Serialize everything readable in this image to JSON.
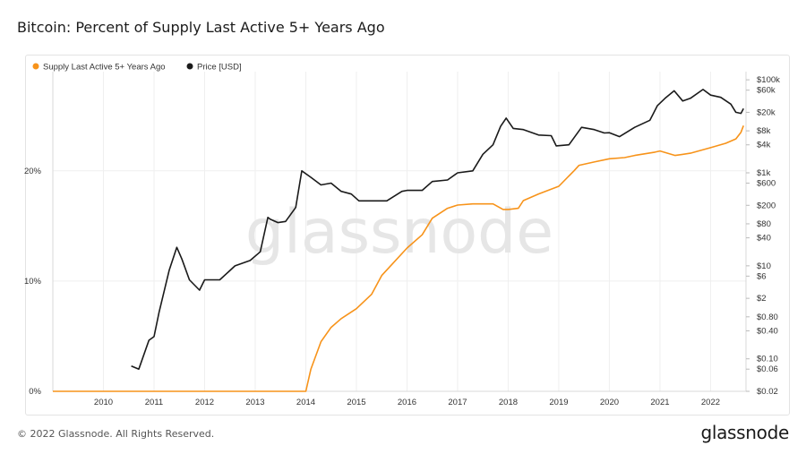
{
  "page": {
    "title": "Bitcoin: Percent of Supply Last Active 5+ Years Ago",
    "copyright": "© 2022 Glassnode. All Rights Reserved.",
    "brand": "glassnode",
    "watermark": "glassnode"
  },
  "chart_data": {
    "type": "line",
    "title": "Bitcoin: Percent of Supply Last Active 5+ Years Ago",
    "legend_position": "top-left",
    "grid": true,
    "x_ticks": [
      "2010",
      "2011",
      "2012",
      "2013",
      "2014",
      "2015",
      "2016",
      "2017",
      "2018",
      "2019",
      "2020",
      "2021",
      "2022"
    ],
    "xlim": [
      2009.0,
      2022.7
    ],
    "y_left": {
      "ticks": [
        "0%",
        "10%",
        "20%"
      ],
      "ylim": [
        0,
        29
      ]
    },
    "y_right": {
      "scale": "log",
      "ticks": [
        "$100k",
        "$60k",
        "$20k",
        "$8k",
        "$4k",
        "$1k",
        "$600",
        "$200",
        "$80",
        "$40",
        "$10",
        "$6",
        "$2",
        "$0.80",
        "$0.40",
        "$0.10",
        "$0.06",
        "$0.02"
      ],
      "tick_values": [
        100000,
        60000,
        20000,
        8000,
        4000,
        1000,
        600,
        200,
        80,
        40,
        10,
        6,
        2,
        0.8,
        0.4,
        0.1,
        0.06,
        0.02
      ],
      "ylim": [
        0.02,
        150000
      ]
    },
    "colors": {
      "supply": "#f7931a",
      "price": "#1a1a1a"
    },
    "series": [
      {
        "name": "Supply Last Active 5+ Years Ago",
        "axis": "left",
        "x": [
          2009.0,
          2014.0,
          2014.1,
          2014.3,
          2014.5,
          2014.7,
          2015.0,
          2015.3,
          2015.5,
          2015.7,
          2016.0,
          2016.3,
          2016.5,
          2016.8,
          2017.0,
          2017.3,
          2017.7,
          2017.9,
          2018.0,
          2018.2,
          2018.3,
          2018.6,
          2019.0,
          2019.3,
          2019.4,
          2019.7,
          2020.0,
          2020.3,
          2020.5,
          2020.9,
          2021.0,
          2021.3,
          2021.6,
          2022.0,
          2022.3,
          2022.5,
          2022.6,
          2022.65
        ],
        "values": [
          0,
          0,
          2,
          4.5,
          5.8,
          6.6,
          7.5,
          8.8,
          10.5,
          11.5,
          13.0,
          14.2,
          15.7,
          16.6,
          16.9,
          17.0,
          17.0,
          16.5,
          16.5,
          16.6,
          17.3,
          17.9,
          18.6,
          20.0,
          20.5,
          20.8,
          21.1,
          21.2,
          21.4,
          21.7,
          21.8,
          21.4,
          21.6,
          22.1,
          22.5,
          22.9,
          23.5,
          24.1
        ]
      },
      {
        "name": "Price [USD]",
        "axis": "right",
        "x": [
          2010.55,
          2010.7,
          2010.9,
          2011.0,
          2011.1,
          2011.3,
          2011.45,
          2011.55,
          2011.7,
          2011.9,
          2012.0,
          2012.3,
          2012.6,
          2012.9,
          2013.1,
          2013.25,
          2013.3,
          2013.45,
          2013.6,
          2013.8,
          2013.92,
          2014.1,
          2014.3,
          2014.5,
          2014.7,
          2014.9,
          2015.05,
          2015.3,
          2015.6,
          2015.9,
          2016.0,
          2016.3,
          2016.5,
          2016.8,
          2017.0,
          2017.3,
          2017.5,
          2017.7,
          2017.85,
          2017.96,
          2018.1,
          2018.3,
          2018.6,
          2018.85,
          2018.95,
          2019.2,
          2019.45,
          2019.7,
          2019.9,
          2020.0,
          2020.2,
          2020.5,
          2020.8,
          2020.95,
          2021.1,
          2021.28,
          2021.45,
          2021.6,
          2021.85,
          2022.0,
          2022.2,
          2022.4,
          2022.5,
          2022.6,
          2022.65
        ],
        "values": [
          0.07,
          0.06,
          0.25,
          0.3,
          1.0,
          8,
          25,
          14,
          5,
          3,
          5,
          5,
          10,
          13,
          20,
          110,
          100,
          85,
          90,
          180,
          1100,
          800,
          550,
          600,
          400,
          350,
          250,
          250,
          250,
          400,
          420,
          420,
          650,
          700,
          1000,
          1100,
          2500,
          4000,
          10000,
          15000,
          9000,
          8500,
          6500,
          6300,
          3800,
          4000,
          9500,
          8500,
          7200,
          7300,
          6000,
          9500,
          13500,
          28000,
          40000,
          58000,
          35000,
          40000,
          62000,
          47000,
          42000,
          30000,
          20000,
          19000,
          24000
        ]
      }
    ]
  }
}
